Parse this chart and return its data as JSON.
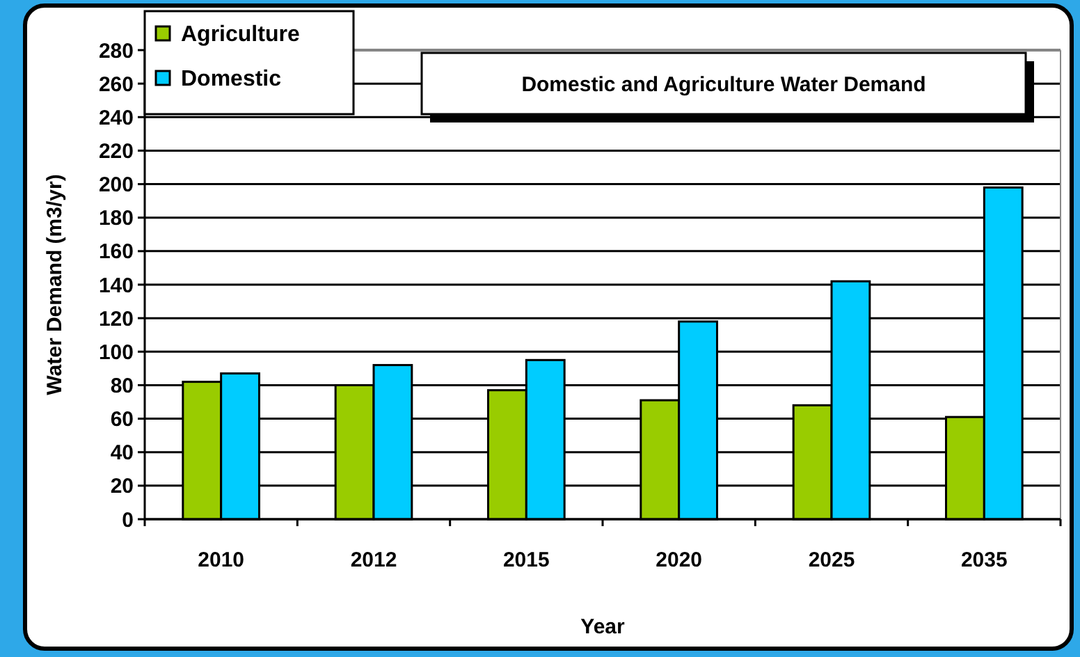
{
  "chart_data": {
    "type": "bar",
    "title": "Domestic and Agriculture Water Demand",
    "xlabel": "Year",
    "ylabel": "Water Demand (m3/yr)",
    "categories": [
      "2010",
      "2012",
      "2015",
      "2020",
      "2025",
      "2035"
    ],
    "series": [
      {
        "name": "Agriculture",
        "color": "#99cc00",
        "values": [
          82,
          80,
          77,
          71,
          68,
          61
        ]
      },
      {
        "name": "Domestic",
        "color": "#00ccff",
        "values": [
          87,
          92,
          95,
          118,
          142,
          198
        ]
      }
    ],
    "ylim": [
      0,
      280
    ],
    "yticks": [
      0,
      20,
      40,
      60,
      80,
      100,
      120,
      140,
      160,
      180,
      200,
      220,
      240,
      260,
      280
    ],
    "grid": "y",
    "legend": "top left"
  }
}
